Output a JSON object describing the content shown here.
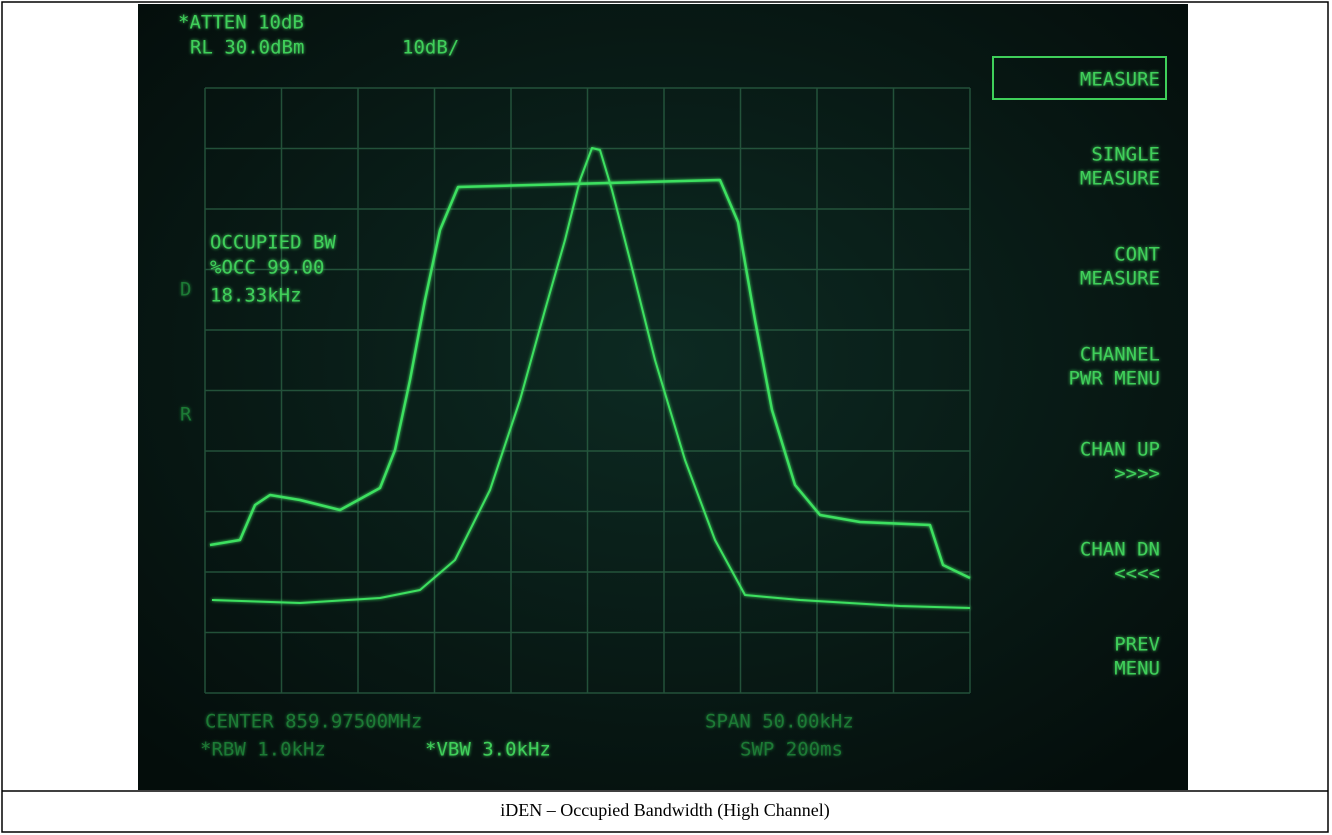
{
  "screen": {
    "header": [
      "*ATTEN 10dB",
      "RL 30.0dBm",
      "10dB/"
    ],
    "softkeys": [
      [
        "MEASURE"
      ],
      [
        "SINGLE",
        "MEASURE"
      ],
      [
        "CONT",
        "MEASURE"
      ],
      [
        "CHANNEL",
        "PWR MENU"
      ],
      [
        "CHAN UP",
        ">>>>"
      ],
      [
        "CHAN DN",
        "<<<<"
      ],
      [
        "PREV",
        "MENU"
      ]
    ],
    "readout": [
      "OCCUPIED BW",
      "%OCC 99.00",
      "18.33kHz"
    ],
    "side_markers": [
      "D",
      "R"
    ],
    "footer": [
      "CENTER 859.97500MHz",
      "SPAN 50.00kHz",
      "*RBW 1.0kHz",
      "*VBW 3.0kHz",
      "SWP 200ms"
    ]
  },
  "caption": "iDEN – Occupied Bandwidth (High Channel)"
}
